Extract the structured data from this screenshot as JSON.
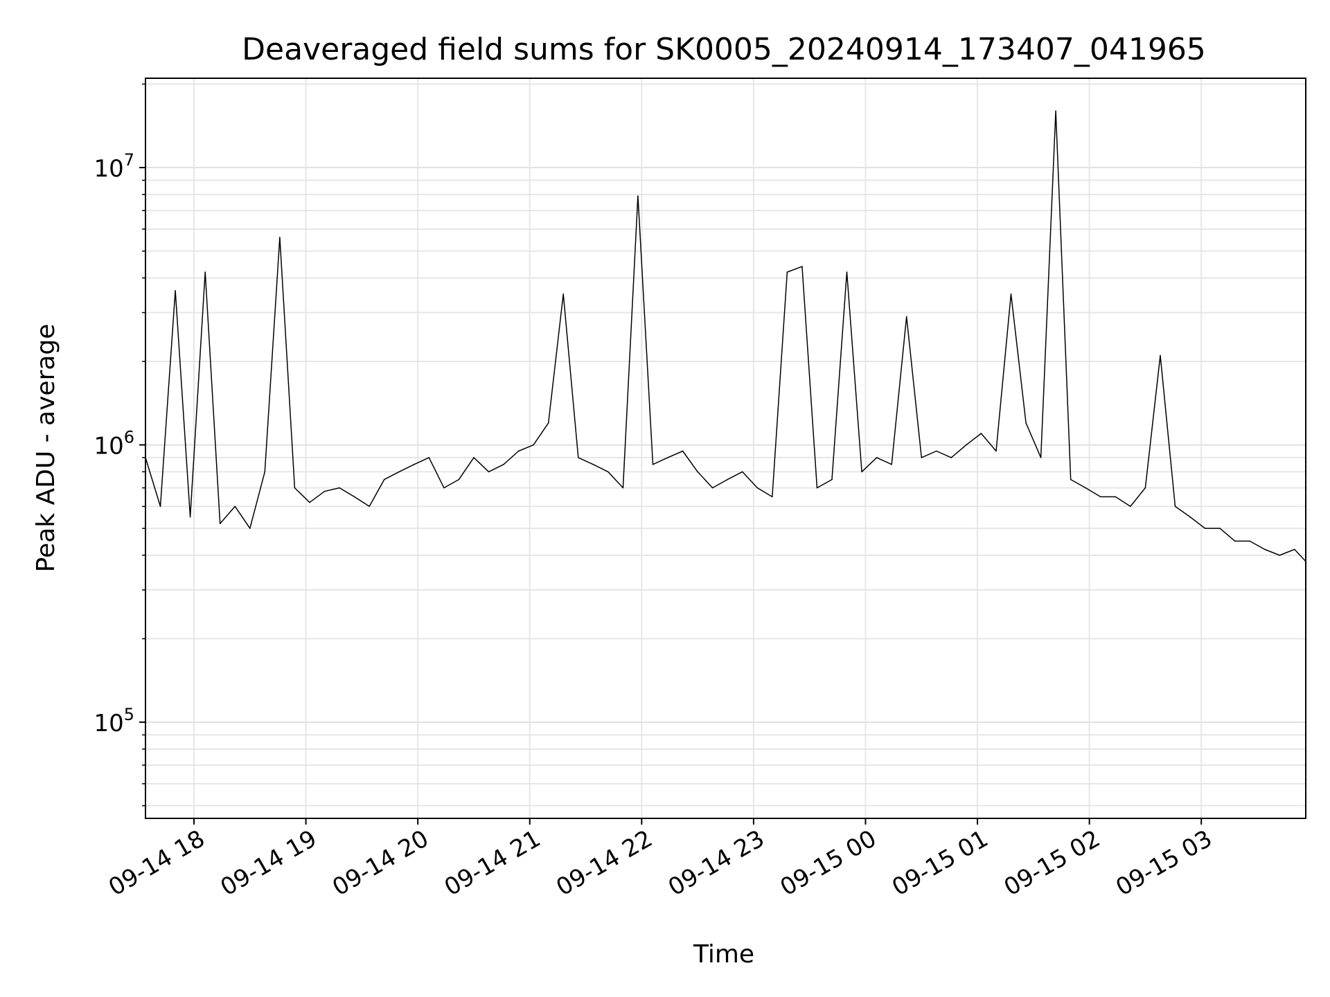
{
  "chart_data": {
    "type": "line",
    "title": "Deaveraged field sums for SK0005_20240914_173407_041965",
    "xlabel": "Time",
    "ylabel": "Peak ADU - average",
    "yscale": "log",
    "ylim": [
      45000,
      21000000
    ],
    "xlim": [
      "2024-09-14 17:34",
      "2024-09-15 03:56"
    ],
    "grid": true,
    "x_ticks": [
      {
        "value": "2024-09-14 18:00",
        "label": "09-14 18"
      },
      {
        "value": "2024-09-14 19:00",
        "label": "09-14 19"
      },
      {
        "value": "2024-09-14 20:00",
        "label": "09-14 20"
      },
      {
        "value": "2024-09-14 21:00",
        "label": "09-14 21"
      },
      {
        "value": "2024-09-14 22:00",
        "label": "09-14 22"
      },
      {
        "value": "2024-09-14 23:00",
        "label": "09-14 23"
      },
      {
        "value": "2024-09-15 00:00",
        "label": "09-15 00"
      },
      {
        "value": "2024-09-15 01:00",
        "label": "09-15 01"
      },
      {
        "value": "2024-09-15 02:00",
        "label": "09-15 02"
      },
      {
        "value": "2024-09-15 03:00",
        "label": "09-15 03"
      }
    ],
    "y_ticks": [
      {
        "value": 100000,
        "base": "10",
        "exp": "5"
      },
      {
        "value": 1000000,
        "base": "10",
        "exp": "6"
      },
      {
        "value": 10000000,
        "base": "10",
        "exp": "7"
      }
    ],
    "series": [
      {
        "color": "#000000",
        "x": [
          "2024-09-14 17:34",
          "2024-09-14 17:42",
          "2024-09-14 17:50",
          "2024-09-14 17:58",
          "2024-09-14 18:06",
          "2024-09-14 18:14",
          "2024-09-14 18:22",
          "2024-09-14 18:30",
          "2024-09-14 18:38",
          "2024-09-14 18:46",
          "2024-09-14 18:54",
          "2024-09-14 19:02",
          "2024-09-14 19:10",
          "2024-09-14 19:18",
          "2024-09-14 19:26",
          "2024-09-14 19:34",
          "2024-09-14 19:42",
          "2024-09-14 19:50",
          "2024-09-14 19:58",
          "2024-09-14 20:06",
          "2024-09-14 20:14",
          "2024-09-14 20:22",
          "2024-09-14 20:30",
          "2024-09-14 20:38",
          "2024-09-14 20:46",
          "2024-09-14 20:54",
          "2024-09-14 21:02",
          "2024-09-14 21:10",
          "2024-09-14 21:18",
          "2024-09-14 21:26",
          "2024-09-14 21:34",
          "2024-09-14 21:42",
          "2024-09-14 21:50",
          "2024-09-14 21:58",
          "2024-09-14 22:06",
          "2024-09-14 22:14",
          "2024-09-14 22:22",
          "2024-09-14 22:30",
          "2024-09-14 22:38",
          "2024-09-14 22:46",
          "2024-09-14 22:54",
          "2024-09-14 23:02",
          "2024-09-14 23:10",
          "2024-09-14 23:18",
          "2024-09-14 23:26",
          "2024-09-14 23:34",
          "2024-09-14 23:42",
          "2024-09-14 23:50",
          "2024-09-14 23:58",
          "2024-09-15 00:06",
          "2024-09-15 00:14",
          "2024-09-15 00:22",
          "2024-09-15 00:30",
          "2024-09-15 00:38",
          "2024-09-15 00:46",
          "2024-09-15 00:54",
          "2024-09-15 01:02",
          "2024-09-15 01:10",
          "2024-09-15 01:18",
          "2024-09-15 01:26",
          "2024-09-15 01:34",
          "2024-09-15 01:42",
          "2024-09-15 01:50",
          "2024-09-15 01:58",
          "2024-09-15 02:06",
          "2024-09-15 02:14",
          "2024-09-15 02:22",
          "2024-09-15 02:30",
          "2024-09-15 02:38",
          "2024-09-15 02:46",
          "2024-09-15 02:54",
          "2024-09-15 03:02",
          "2024-09-15 03:10",
          "2024-09-15 03:18",
          "2024-09-15 03:26",
          "2024-09-15 03:34",
          "2024-09-15 03:42",
          "2024-09-15 03:50",
          "2024-09-15 03:56"
        ],
        "y": [
          900000,
          600000,
          3600000,
          550000,
          4200000,
          520000,
          600000,
          500000,
          800000,
          5600000,
          700000,
          620000,
          680000,
          700000,
          650000,
          600000,
          750000,
          800000,
          850000,
          900000,
          700000,
          750000,
          900000,
          800000,
          850000,
          950000,
          1000000,
          1200000,
          3500000,
          900000,
          850000,
          800000,
          700000,
          7900000,
          850000,
          900000,
          950000,
          800000,
          700000,
          750000,
          800000,
          700000,
          650000,
          4200000,
          4400000,
          700000,
          750000,
          4200000,
          800000,
          900000,
          850000,
          2900000,
          900000,
          950000,
          900000,
          1000000,
          1100000,
          950000,
          3500000,
          1200000,
          900000,
          16000000,
          750000,
          700000,
          650000,
          650000,
          600000,
          700000,
          2100000,
          600000,
          550000,
          500000,
          500000,
          450000,
          450000,
          420000,
          400000,
          420000,
          380000
        ]
      }
    ]
  }
}
